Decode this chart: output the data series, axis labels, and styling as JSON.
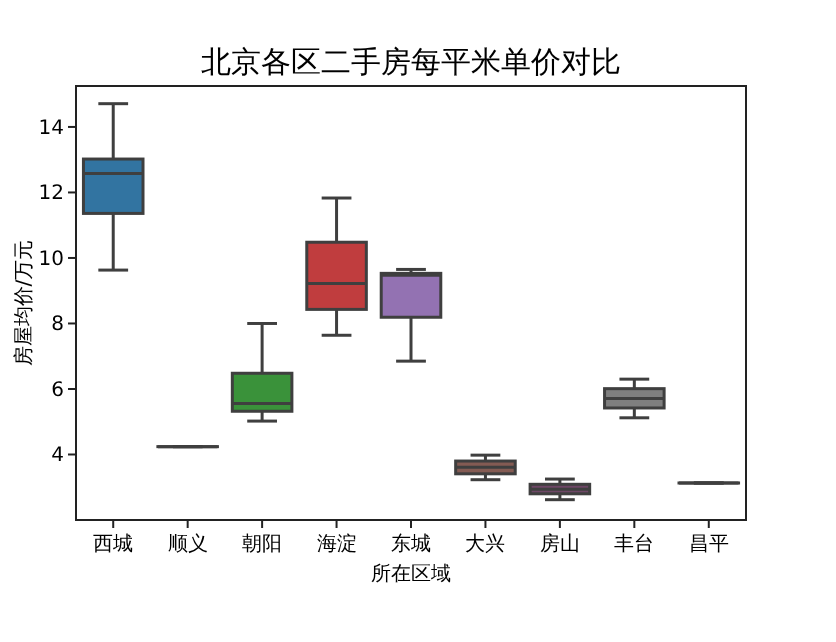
{
  "chart_data": {
    "type": "box",
    "title": "北京各区二手房每平米单价对比",
    "xlabel": "所在区域",
    "ylabel": "房屋均价/万元",
    "categories": [
      "西城",
      "顺义",
      "朝阳",
      "海淀",
      "东城",
      "大兴",
      "房山",
      "丰台",
      "昌平"
    ],
    "colors": [
      "#3274a1",
      "#3f3f3f",
      "#3a923a",
      "#c03d3e",
      "#9372b2",
      "#845b53",
      "#6e4766",
      "#7f7f7f",
      "#3f3f3f"
    ],
    "boxes": [
      {
        "low": 9.63,
        "q1": 11.36,
        "median": 12.58,
        "q3": 13.02,
        "high": 14.71
      },
      {
        "low": 4.24,
        "q1": 4.24,
        "median": 4.24,
        "q3": 4.24,
        "high": 4.24
      },
      {
        "low": 5.02,
        "q1": 5.32,
        "median": 5.56,
        "q3": 6.48,
        "high": 8.0
      },
      {
        "low": 7.64,
        "q1": 8.43,
        "median": 9.22,
        "q3": 10.48,
        "high": 11.83
      },
      {
        "low": 6.85,
        "q1": 8.19,
        "median": 9.47,
        "q3": 9.53,
        "high": 9.65
      },
      {
        "low": 3.23,
        "q1": 3.41,
        "median": 3.61,
        "q3": 3.8,
        "high": 3.98
      },
      {
        "low": 2.62,
        "q1": 2.8,
        "median": 2.94,
        "q3": 3.09,
        "high": 3.25
      },
      {
        "low": 5.12,
        "q1": 5.42,
        "median": 5.71,
        "q3": 6.01,
        "high": 6.3
      },
      {
        "low": 3.13,
        "q1": 3.13,
        "median": 3.13,
        "q3": 3.13,
        "high": 3.13
      }
    ],
    "ylim": [
      2.0,
      15.25
    ],
    "yticks": [
      4,
      6,
      8,
      10,
      12,
      14
    ],
    "grid": false
  }
}
